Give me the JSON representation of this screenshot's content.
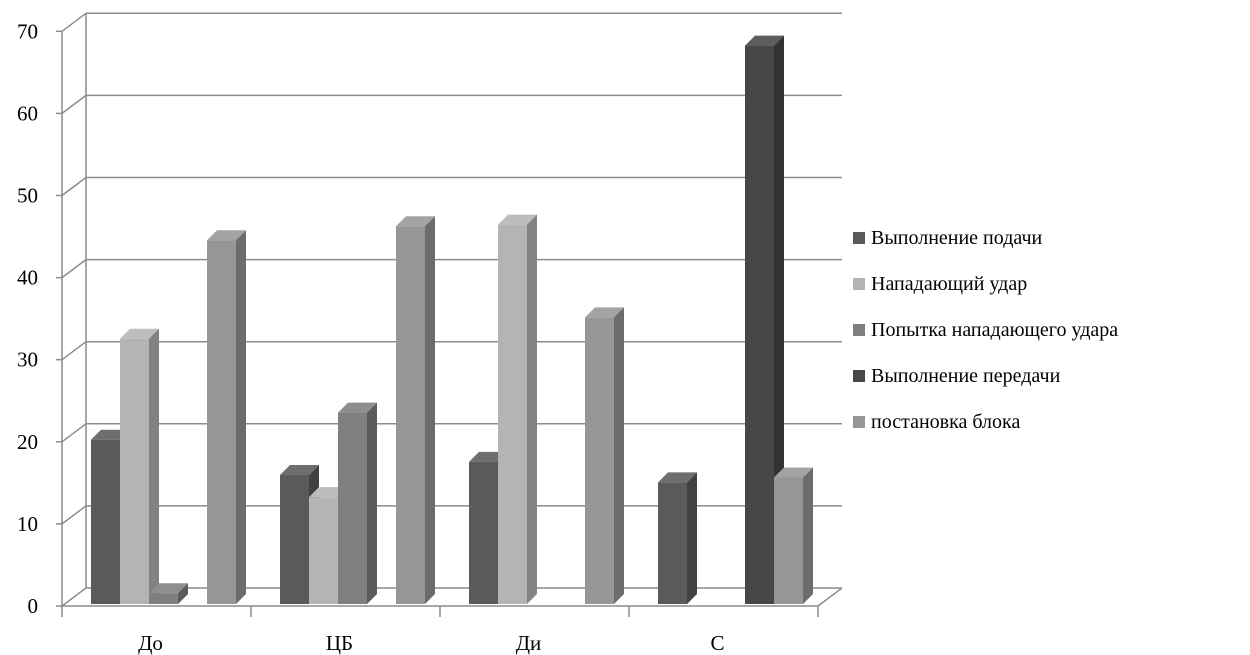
{
  "chart_data": {
    "type": "bar",
    "title": "",
    "xlabel": "",
    "ylabel": "",
    "ylim": [
      0,
      70
    ],
    "yticks": [
      0,
      10,
      20,
      30,
      40,
      50,
      60,
      70
    ],
    "grid": true,
    "three_d": true,
    "legend_position": "right",
    "categories": [
      "До",
      "ЦБ",
      "Ди",
      "С"
    ],
    "series": [
      {
        "name": "Выполнение подачи",
        "color": "#5a5a5a",
        "values": [
          20.5,
          16.2,
          17.8,
          15.3
        ]
      },
      {
        "name": "Нападающий удар",
        "color": "#b4b4b4",
        "values": [
          32.8,
          13.5,
          46.7,
          0
        ]
      },
      {
        "name": "Попытка нападающего удара",
        "color": "#7f7f7f",
        "values": [
          1.8,
          23.8,
          0,
          0
        ]
      },
      {
        "name": "Выполнение передачи",
        "color": "#474747",
        "values": [
          0,
          0,
          0,
          68.5
        ]
      },
      {
        "name": "постановка блока",
        "color": "#969696",
        "values": [
          44.8,
          46.5,
          35.4,
          15.9
        ]
      }
    ]
  }
}
